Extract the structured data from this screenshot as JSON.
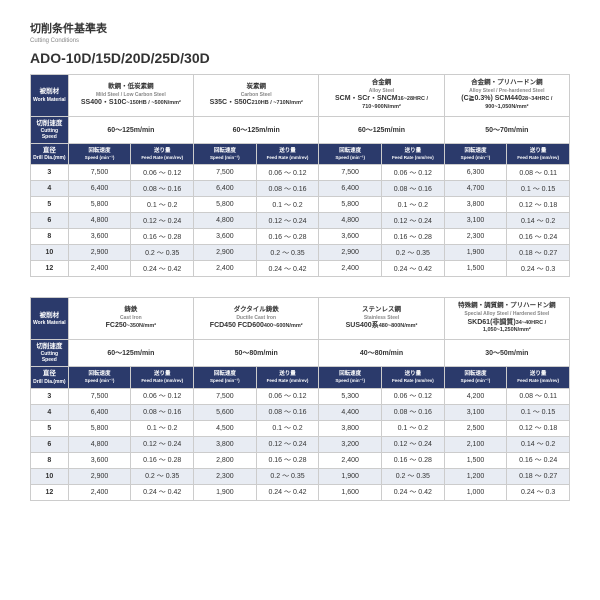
{
  "header": {
    "title_jp": "切削条件基準表",
    "title_sub": "Cutting Conditions",
    "model": "ADO-10D/15D/20D/25D/30D"
  },
  "labels": {
    "work": "被削材",
    "work_en": "Work Material",
    "cutspeed": "切削速度",
    "cutspeed_en": "Cutting Speed",
    "dia": "直径",
    "dia_en": "Drill Dia.(mm)",
    "speed": "回転速度",
    "speed_en": "Speed (min⁻¹)",
    "feed": "送り量",
    "feed_en": "Feed Rate (mm/rev)"
  },
  "t1": {
    "mats": [
      {
        "jp": "軟鋼・低炭素鋼",
        "en": "Mild Steel / Low Carbon Steel",
        "spec": "SS400・S10C",
        "spec2": "~150HB / ~500N/mm²"
      },
      {
        "jp": "炭素鋼",
        "en": "Carbon Steel",
        "spec": "S35C・S50C",
        "spec2": "210HB / ~710N/mm²"
      },
      {
        "jp": "合金鋼",
        "en": "Alloy Steel",
        "spec": "SCM・SCr・SNCM",
        "spec2": "16~28HRC / 710~900N/mm²"
      },
      {
        "jp": "合金鋼・プリハードン鋼",
        "en": "Alloy Steel / Pre-hardened Steel",
        "spec": "(C≧0.3%) SCM440",
        "spec2": "28~34HRC / 900~1,050N/mm²"
      }
    ],
    "speeds": [
      "60～125m/min",
      "60～125m/min",
      "60～125m/min",
      "50～70m/min"
    ],
    "rows": [
      {
        "d": "3",
        "c": [
          [
            "7,500",
            "0.06 ～ 0.12"
          ],
          [
            "7,500",
            "0.06 ～ 0.12"
          ],
          [
            "7,500",
            "0.06 ～ 0.12"
          ],
          [
            "6,300",
            "0.08 ～ 0.11"
          ]
        ]
      },
      {
        "d": "4",
        "c": [
          [
            "6,400",
            "0.08 ～ 0.16"
          ],
          [
            "6,400",
            "0.08 ～ 0.16"
          ],
          [
            "6,400",
            "0.08 ～ 0.16"
          ],
          [
            "4,700",
            "0.1 ～ 0.15"
          ]
        ]
      },
      {
        "d": "5",
        "c": [
          [
            "5,800",
            "0.1 ～ 0.2"
          ],
          [
            "5,800",
            "0.1 ～ 0.2"
          ],
          [
            "5,800",
            "0.1 ～ 0.2"
          ],
          [
            "3,800",
            "0.12 ～ 0.18"
          ]
        ]
      },
      {
        "d": "6",
        "c": [
          [
            "4,800",
            "0.12 ～ 0.24"
          ],
          [
            "4,800",
            "0.12 ～ 0.24"
          ],
          [
            "4,800",
            "0.12 ～ 0.24"
          ],
          [
            "3,100",
            "0.14 ～ 0.2"
          ]
        ]
      },
      {
        "d": "8",
        "c": [
          [
            "3,600",
            "0.16 ～ 0.28"
          ],
          [
            "3,600",
            "0.16 ～ 0.28"
          ],
          [
            "3,600",
            "0.16 ～ 0.28"
          ],
          [
            "2,300",
            "0.16 ～ 0.24"
          ]
        ]
      },
      {
        "d": "10",
        "c": [
          [
            "2,900",
            "0.2 ～ 0.35"
          ],
          [
            "2,900",
            "0.2 ～ 0.35"
          ],
          [
            "2,900",
            "0.2 ～ 0.35"
          ],
          [
            "1,900",
            "0.18 ～ 0.27"
          ]
        ]
      },
      {
        "d": "12",
        "c": [
          [
            "2,400",
            "0.24 ～ 0.42"
          ],
          [
            "2,400",
            "0.24 ～ 0.42"
          ],
          [
            "2,400",
            "0.24 ～ 0.42"
          ],
          [
            "1,500",
            "0.24 ～ 0.3"
          ]
        ]
      }
    ]
  },
  "t2": {
    "mats": [
      {
        "jp": "鋳鉄",
        "en": "Cast Iron",
        "spec": "FC250",
        "spec2": "~350N/mm²"
      },
      {
        "jp": "ダクタイル鋳鉄",
        "en": "Ductile Cast Iron",
        "spec": "FCD450 FCD600",
        "spec2": "400~600N/mm²"
      },
      {
        "jp": "ステンレス鋼",
        "en": "Stainless Steel",
        "spec": "SUS400系",
        "spec2": "480~800N/mm²"
      },
      {
        "jp": "特殊鋼・調質鋼・プリハードン鋼",
        "en": "Special Alloy Steel / Hardened Steel",
        "spec": "SKD61(非調質)",
        "spec2": "34~40HRC / 1,050~1,250N/mm²"
      }
    ],
    "speeds": [
      "60～125m/min",
      "50～80m/min",
      "40～80m/min",
      "30～50m/min"
    ],
    "rows": [
      {
        "d": "3",
        "c": [
          [
            "7,500",
            "0.06 ～ 0.12"
          ],
          [
            "7,500",
            "0.06 ～ 0.12"
          ],
          [
            "5,300",
            "0.06 ～ 0.12"
          ],
          [
            "4,200",
            "0.08 ～ 0.11"
          ]
        ]
      },
      {
        "d": "4",
        "c": [
          [
            "6,400",
            "0.08 ～ 0.16"
          ],
          [
            "5,600",
            "0.08 ～ 0.16"
          ],
          [
            "4,400",
            "0.08 ～ 0.16"
          ],
          [
            "3,100",
            "0.1 ～ 0.15"
          ]
        ]
      },
      {
        "d": "5",
        "c": [
          [
            "5,800",
            "0.1 ～ 0.2"
          ],
          [
            "4,500",
            "0.1 ～ 0.2"
          ],
          [
            "3,800",
            "0.1 ～ 0.2"
          ],
          [
            "2,500",
            "0.12 ～ 0.18"
          ]
        ]
      },
      {
        "d": "6",
        "c": [
          [
            "4,800",
            "0.12 ～ 0.24"
          ],
          [
            "3,800",
            "0.12 ～ 0.24"
          ],
          [
            "3,200",
            "0.12 ～ 0.24"
          ],
          [
            "2,100",
            "0.14 ～ 0.2"
          ]
        ]
      },
      {
        "d": "8",
        "c": [
          [
            "3,600",
            "0.16 ～ 0.28"
          ],
          [
            "2,800",
            "0.16 ～ 0.28"
          ],
          [
            "2,400",
            "0.16 ～ 0.28"
          ],
          [
            "1,500",
            "0.16 ～ 0.24"
          ]
        ]
      },
      {
        "d": "10",
        "c": [
          [
            "2,900",
            "0.2 ～ 0.35"
          ],
          [
            "2,300",
            "0.2 ～ 0.35"
          ],
          [
            "1,900",
            "0.2 ～ 0.35"
          ],
          [
            "1,200",
            "0.18 ～ 0.27"
          ]
        ]
      },
      {
        "d": "12",
        "c": [
          [
            "2,400",
            "0.24 ～ 0.42"
          ],
          [
            "1,900",
            "0.24 ～ 0.42"
          ],
          [
            "1,600",
            "0.24 ～ 0.42"
          ],
          [
            "1,000",
            "0.24 ～ 0.3"
          ]
        ]
      }
    ]
  }
}
